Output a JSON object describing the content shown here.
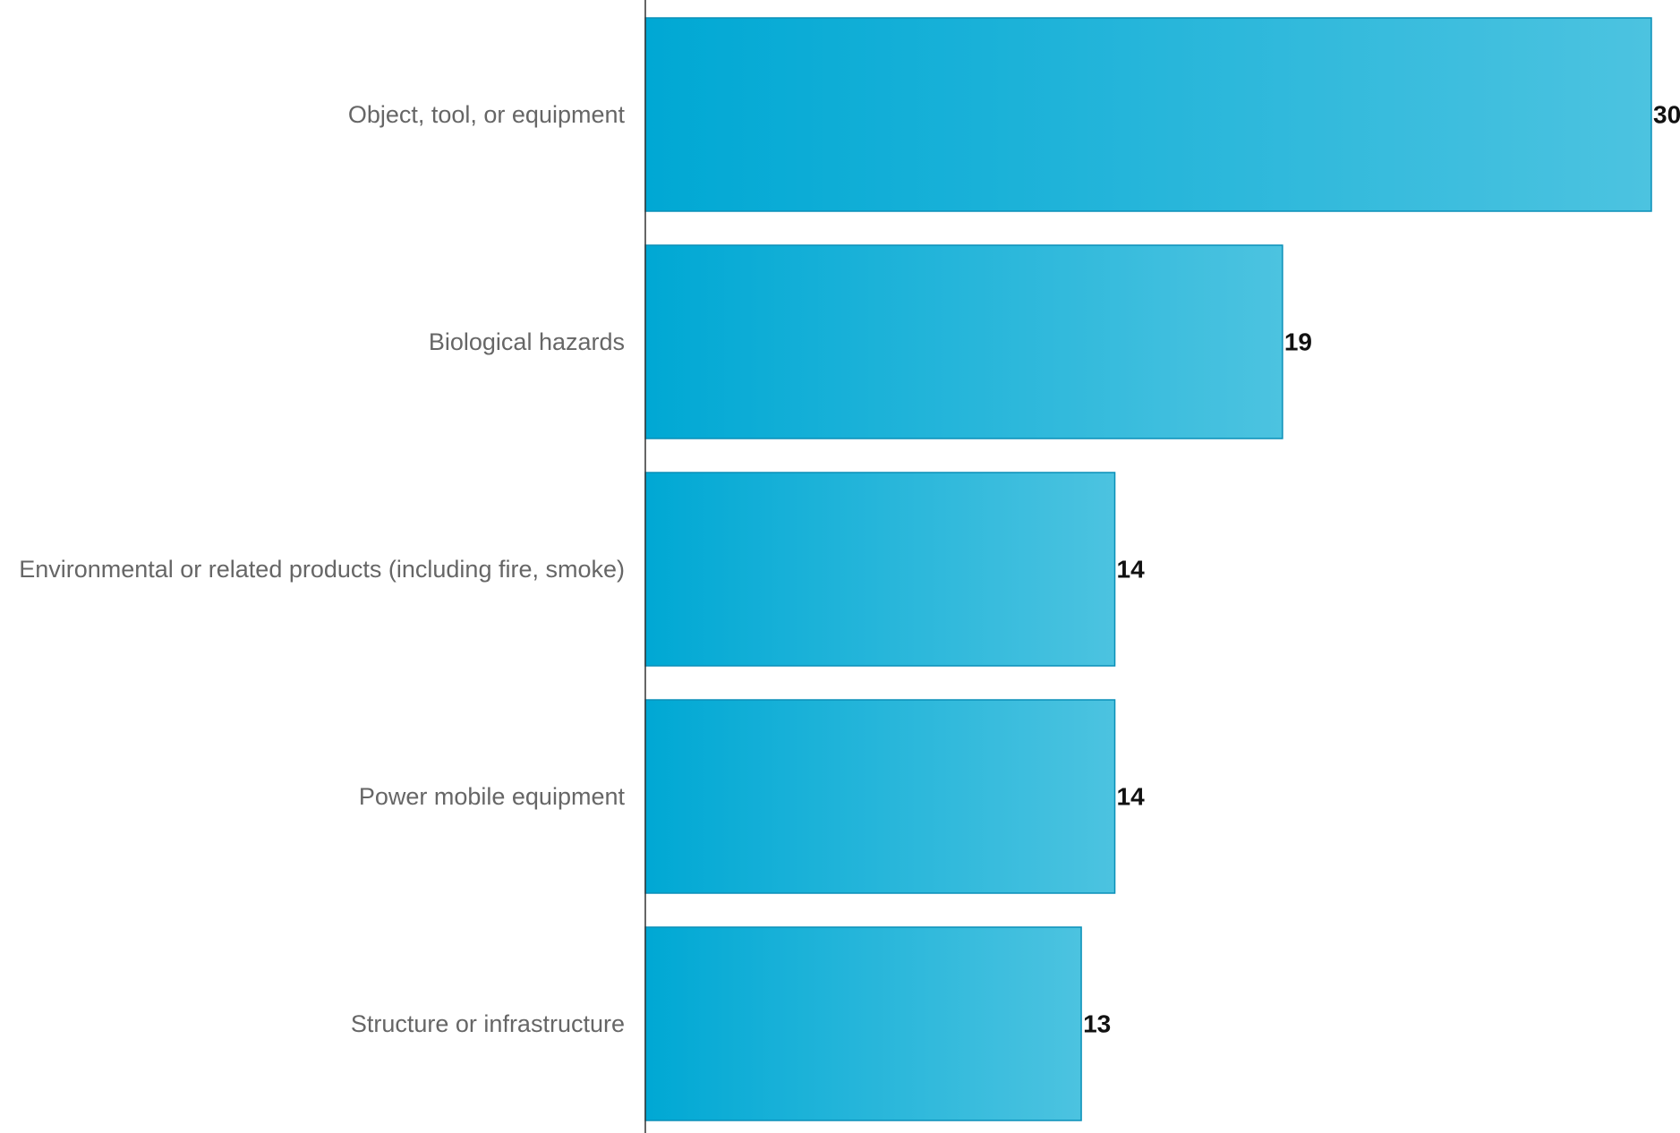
{
  "chart_data": {
    "type": "bar",
    "orientation": "horizontal",
    "categories": [
      "Object, tool, or equipment",
      "Biological hazards",
      "Environmental or related products (including fire, smoke)",
      "Power mobile equipment",
      "Structure or infrastructure"
    ],
    "values": [
      30,
      19,
      14,
      14,
      13
    ],
    "data_labels": [
      "30",
      "19",
      "14",
      "14",
      "13"
    ],
    "xlim": [
      0,
      30
    ],
    "grid": false,
    "legend": "none",
    "colors": {
      "bar_start": "#00a8d4",
      "bar_end": "#4cc3e0",
      "bar_border": "#0a8fb8",
      "axis": "#333333",
      "category_text": "#666666",
      "value_text": "#111111"
    }
  }
}
